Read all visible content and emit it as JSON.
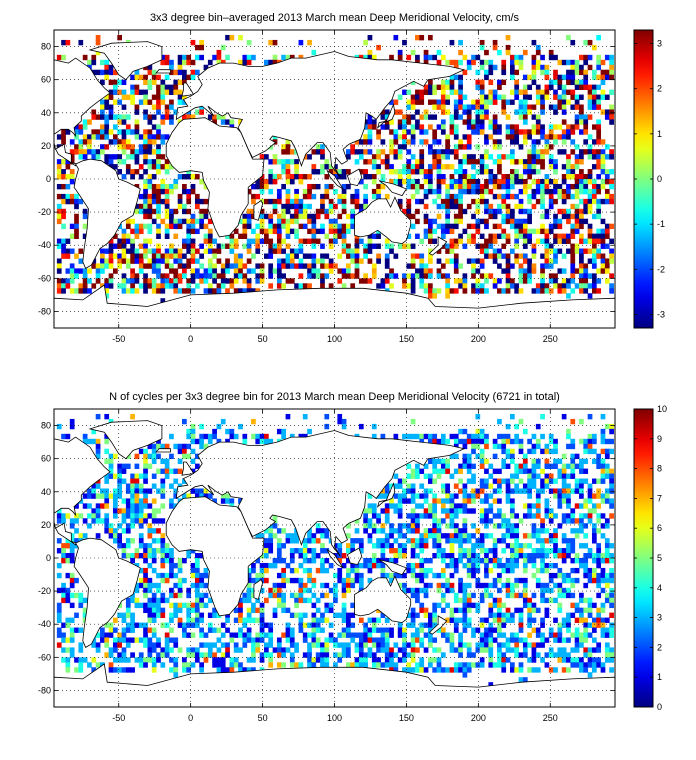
{
  "chart_data": [
    {
      "type": "heatmap",
      "title": "3x3 degree bin–averaged 2013 March mean Deep Meridional Velocity, cm/s",
      "xlabel": "",
      "ylabel": "",
      "xlim": [
        -95,
        295
      ],
      "ylim": [
        -90,
        90
      ],
      "x_ticks": [
        -50,
        0,
        50,
        100,
        150,
        200,
        250
      ],
      "y_ticks": [
        80,
        60,
        40,
        20,
        0,
        -20,
        -40,
        -60,
        -80
      ],
      "grid": true,
      "bin_size_deg": 3,
      "colorbar": {
        "range": [
          -3.3,
          3.3
        ],
        "ticks": [
          3,
          2,
          1,
          0,
          -1,
          -2,
          -3
        ],
        "colormap": "jet"
      },
      "basemap": "world-coastlines",
      "seed": 20130301
    },
    {
      "type": "heatmap",
      "title": "N of cycles per 3x3 degree bin for 2013 March mean Deep Meridional Velocity (6721 in total)",
      "xlabel": "",
      "ylabel": "",
      "xlim": [
        -95,
        295
      ],
      "ylim": [
        -90,
        90
      ],
      "x_ticks": [
        -50,
        0,
        50,
        100,
        150,
        200,
        250
      ],
      "y_ticks": [
        80,
        60,
        40,
        20,
        0,
        -20,
        -40,
        -60,
        -80
      ],
      "grid": true,
      "bin_size_deg": 3,
      "colorbar": {
        "range": [
          0,
          10
        ],
        "ticks": [
          10,
          9,
          8,
          7,
          6,
          5,
          4,
          3,
          2,
          1,
          0
        ],
        "colormap": "jet"
      },
      "basemap": "world-coastlines",
      "seed": 20130302
    }
  ]
}
